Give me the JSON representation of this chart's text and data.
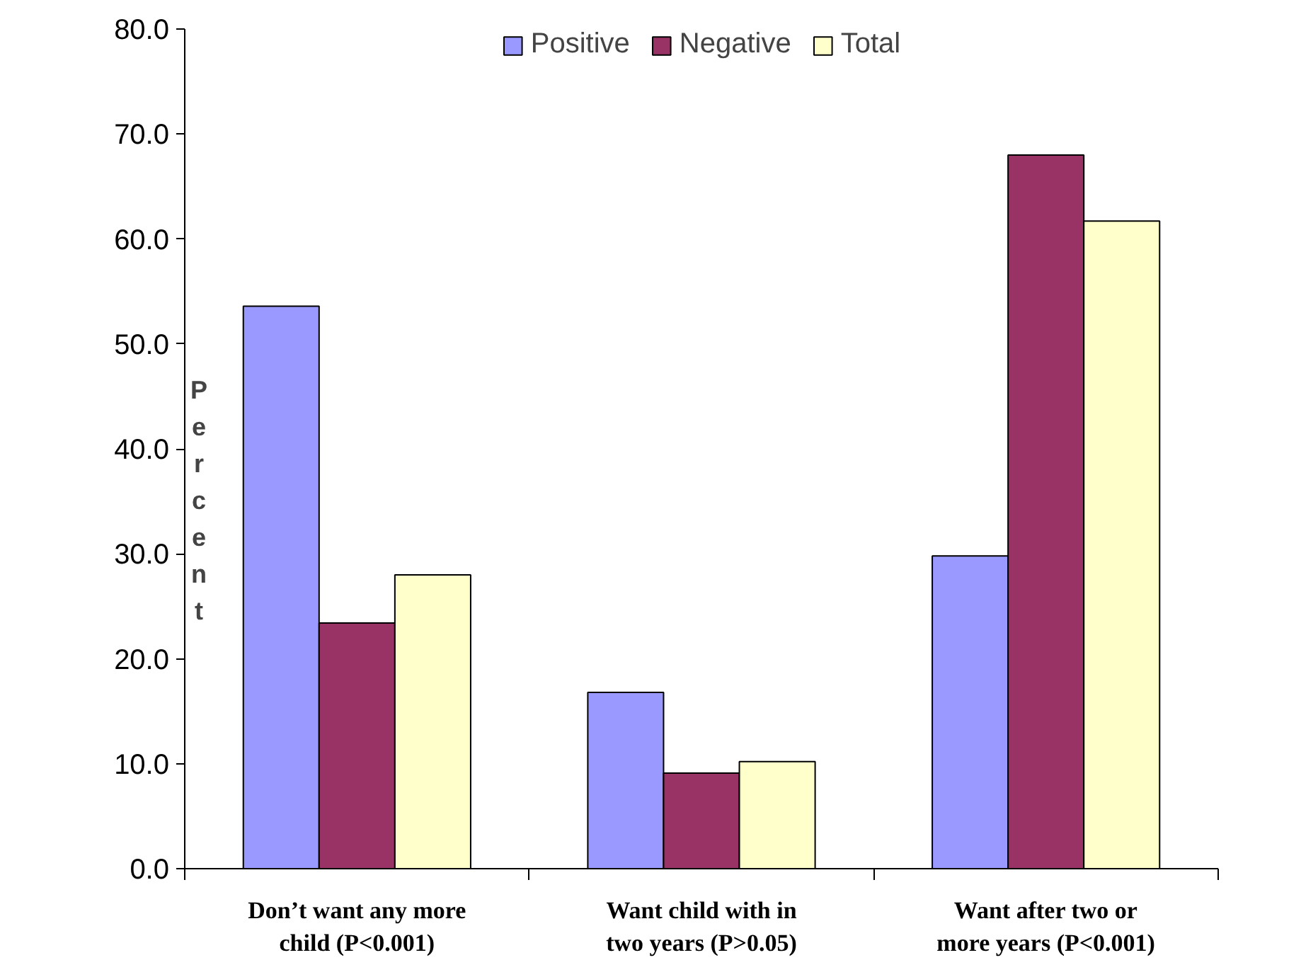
{
  "chart_data": {
    "type": "bar",
    "ylabel": "Percent",
    "categories": [
      "Don’t want any more child (P<0.001)",
      "Want child with in two years (P>0.05)",
      "Want after two or more years (P<0.001)"
    ],
    "series": [
      {
        "name": "Positive",
        "color": "#9999ff",
        "values": [
          53.6,
          16.8,
          29.8
        ]
      },
      {
        "name": "Negative",
        "color": "#993366",
        "values": [
          23.4,
          9.1,
          68.0
        ]
      },
      {
        "name": "Total",
        "color": "#ffffcc",
        "values": [
          28.0,
          10.2,
          61.7
        ]
      }
    ],
    "ylim": [
      0,
      80
    ],
    "yticks": [
      {
        "value": 0,
        "label": "0.0"
      },
      {
        "value": 10,
        "label": "10.0"
      },
      {
        "value": 20,
        "label": "20.0"
      },
      {
        "value": 30,
        "label": "30.0"
      },
      {
        "value": 40,
        "label": "40.0"
      },
      {
        "value": 50,
        "label": "50.0"
      },
      {
        "value": 60,
        "label": "60.0"
      },
      {
        "value": 70,
        "label": "70.0"
      },
      {
        "value": 80,
        "label": "80.0"
      }
    ],
    "grid": false,
    "legend": "top"
  }
}
